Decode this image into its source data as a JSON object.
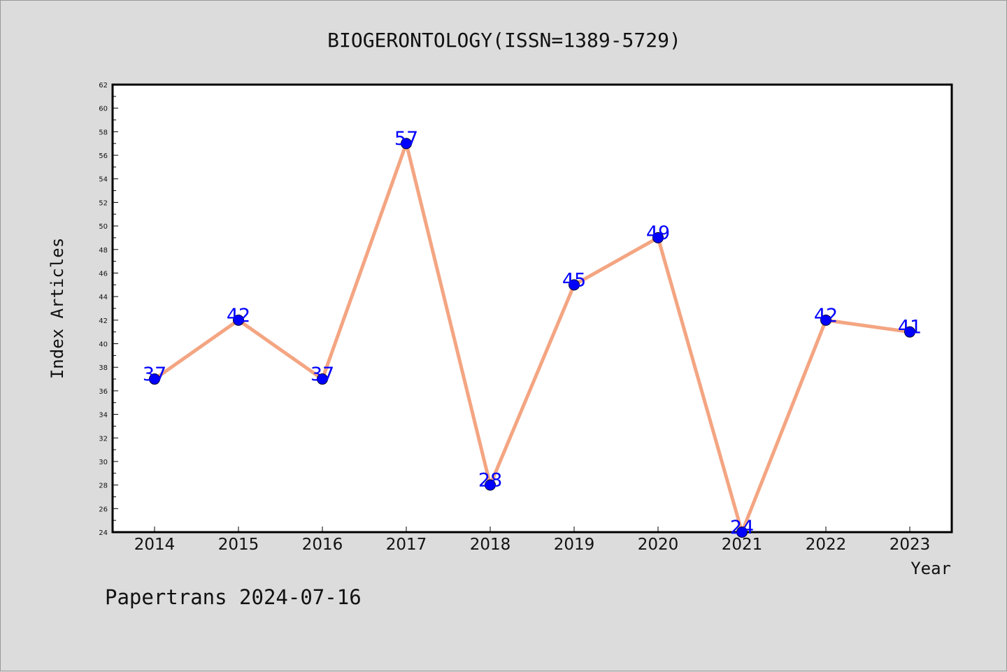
{
  "chart_data": {
    "type": "line",
    "title": "BIOGERONTOLOGY(ISSN=1389-5729)",
    "xlabel": "Year",
    "ylabel": "Index Articles",
    "categories": [
      "2014",
      "2015",
      "2016",
      "2017",
      "2018",
      "2019",
      "2020",
      "2021",
      "2022",
      "2023"
    ],
    "series": [
      {
        "values": [
          37,
          42,
          37,
          57,
          28,
          45,
          49,
          24,
          42,
          41
        ]
      }
    ],
    "data_labels": [
      "37",
      "42",
      "37",
      "57",
      "28",
      "45",
      "49",
      "24",
      "42",
      "41"
    ],
    "ylim": [
      24,
      62
    ],
    "ytick_step": 2,
    "grid": false,
    "legend": "none",
    "colors": {
      "line": "#f4a582",
      "marker": "#0000ff",
      "label": "#0000ff"
    }
  },
  "footer": "Papertrans 2024-07-16"
}
